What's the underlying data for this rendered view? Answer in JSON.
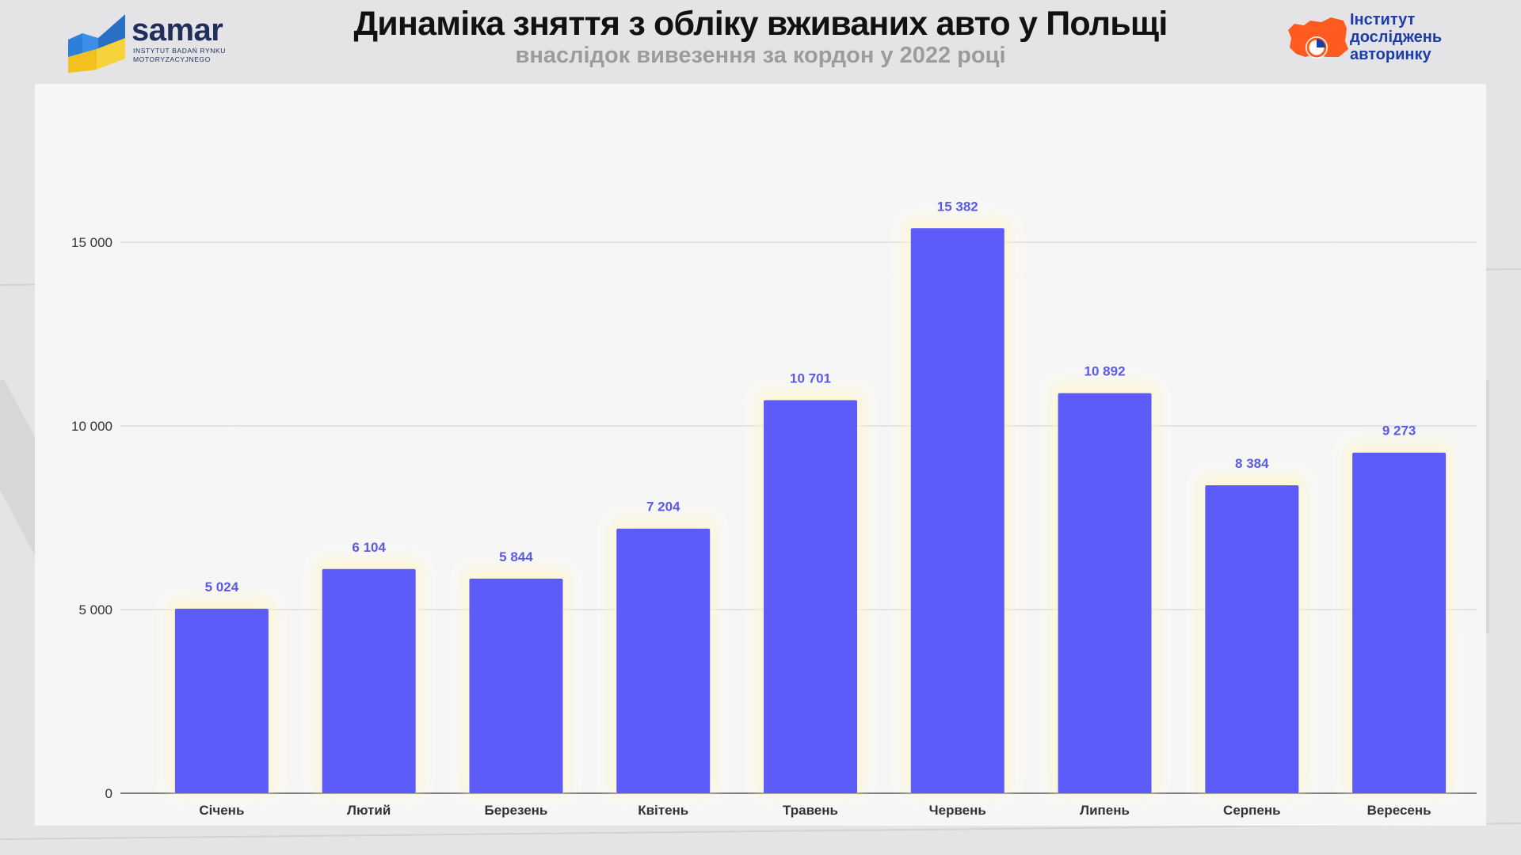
{
  "header": {
    "title": "Динаміка зняття з обліку вживаних авто у Польщі",
    "subtitle": "внаслідок вивезення за кордон у 2022 році"
  },
  "logos": {
    "samar": {
      "name": "samar",
      "tagline_line1": "INSTYTUT BADAŃ RYNKU",
      "tagline_line2": "MOTORYZACYJNEGO",
      "icon": "samar-chart-logo-icon"
    },
    "idar": {
      "line1": "Інститут",
      "line2": "досліджень",
      "line3": "авторинку",
      "icon": "idar-map-logo-icon"
    }
  },
  "colors": {
    "bar": "#5d5cf8",
    "bar_label": "#5a5ae6",
    "title": "#111111",
    "subtitle": "#9c9c9c",
    "grid": "#cfcfcf",
    "idar_orange": "#ff5a1f",
    "idar_blue": "#1d3ca6",
    "samar_blue": "#2f7fd8",
    "samar_yellow": "#f6d33b"
  },
  "chart_data": {
    "type": "bar",
    "categories": [
      "Січень",
      "Лютий",
      "Березень",
      "Квітень",
      "Травень",
      "Червень",
      "Липень",
      "Серпень",
      "Вересень"
    ],
    "values": [
      5024,
      6104,
      5844,
      7204,
      10701,
      15382,
      10892,
      8384,
      9273
    ],
    "value_labels": [
      "5 024",
      "6 104",
      "5 844",
      "7 204",
      "10 701",
      "15 382",
      "10 892",
      "8 384",
      "9 273"
    ],
    "yticks": [
      0,
      5000,
      10000,
      15000
    ],
    "ytick_labels": [
      "0",
      "5 000",
      "10 000",
      "15 000"
    ],
    "ylim": [
      0,
      17000
    ],
    "grid": true,
    "legend": "none"
  }
}
